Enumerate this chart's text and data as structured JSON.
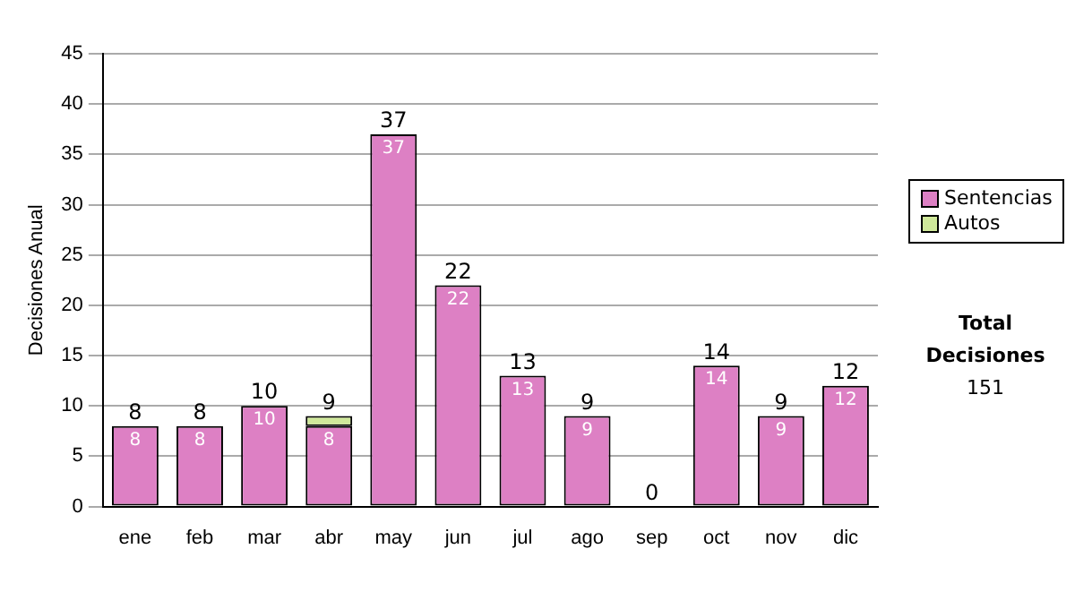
{
  "chart_data": {
    "type": "bar",
    "stacked": true,
    "ylabel": "Decisiones Anual",
    "categories": [
      "ene",
      "feb",
      "mar",
      "abr",
      "may",
      "jun",
      "jul",
      "ago",
      "sep",
      "oct",
      "nov",
      "dic"
    ],
    "series": [
      {
        "name": "Sentencias",
        "color": "#dd80c4",
        "values": [
          8,
          8,
          10,
          8,
          37,
          22,
          13,
          9,
          0,
          14,
          9,
          12
        ],
        "value_labels": [
          "8",
          "8",
          "10",
          "8",
          "37",
          "22",
          "13",
          "9",
          null,
          "14",
          "9",
          "12"
        ]
      },
      {
        "name": "Autos",
        "color": "#cfe89a",
        "values": [
          0,
          0,
          0,
          1,
          0,
          0,
          0,
          0,
          0,
          0,
          0,
          0
        ]
      }
    ],
    "totals": [
      "8",
      "8",
      "10",
      "9",
      "37",
      "22",
      "13",
      "9",
      "0",
      "14",
      "9",
      "12"
    ],
    "ylim": [
      0,
      45
    ],
    "yticks": [
      0,
      5,
      10,
      15,
      20,
      25,
      30,
      35,
      40,
      45
    ],
    "grid": "y",
    "legend": "right",
    "annotations": [
      "Total Decisiones",
      "151"
    ]
  }
}
